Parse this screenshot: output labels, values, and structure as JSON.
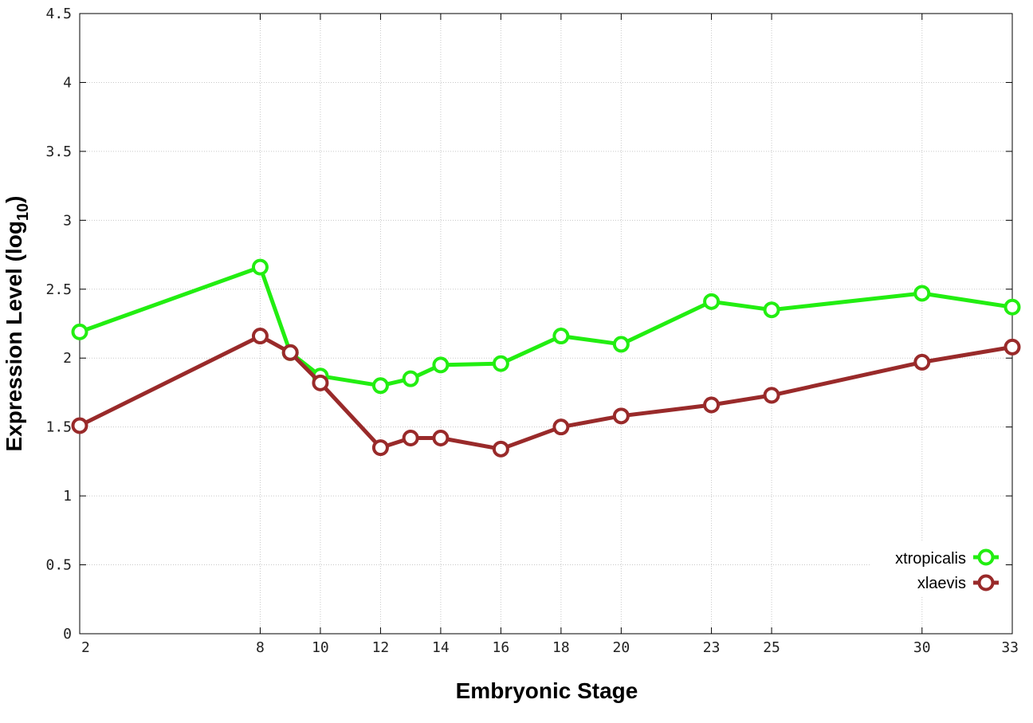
{
  "chart_data": {
    "type": "line",
    "xlabel": "Embryonic Stage",
    "ylabel_main": "Expression Level (log",
    "ylabel_sub": "10",
    "ylabel_close": ")",
    "x_ticks": [
      2,
      8,
      10,
      12,
      14,
      16,
      18,
      20,
      23,
      25,
      30,
      33
    ],
    "x_tick_labels": [
      "2",
      "8",
      "10",
      "12",
      "14",
      "16",
      "18",
      "20",
      "23",
      "25",
      "30",
      "33"
    ],
    "y_ticks": [
      0,
      0.5,
      1,
      1.5,
      2,
      2.5,
      3,
      3.5,
      4,
      4.5
    ],
    "y_tick_labels": [
      "0",
      "0.5",
      "1",
      "1.5",
      "2",
      "2.5",
      "3",
      "3.5",
      "4",
      "4.5"
    ],
    "xlim": [
      2,
      33
    ],
    "ylim": [
      0,
      4.5
    ],
    "grid": true,
    "legend_position": "bottom-right",
    "series": [
      {
        "name": "xtropicalis",
        "color": "#22ee11",
        "x": [
          2,
          8,
          9,
          10,
          12,
          13,
          14,
          16,
          18,
          20,
          23,
          25,
          30,
          33
        ],
        "y": [
          2.19,
          2.66,
          2.04,
          1.87,
          1.8,
          1.85,
          1.95,
          1.96,
          2.16,
          2.1,
          2.41,
          2.35,
          2.47,
          2.37
        ]
      },
      {
        "name": "xlaevis",
        "color": "#992a2a",
        "x": [
          2,
          8,
          9,
          10,
          12,
          13,
          14,
          16,
          18,
          20,
          23,
          25,
          30,
          33
        ],
        "y": [
          1.51,
          2.16,
          2.04,
          1.82,
          1.35,
          1.42,
          1.42,
          1.34,
          1.5,
          1.58,
          1.66,
          1.73,
          1.97,
          2.08
        ]
      }
    ]
  }
}
